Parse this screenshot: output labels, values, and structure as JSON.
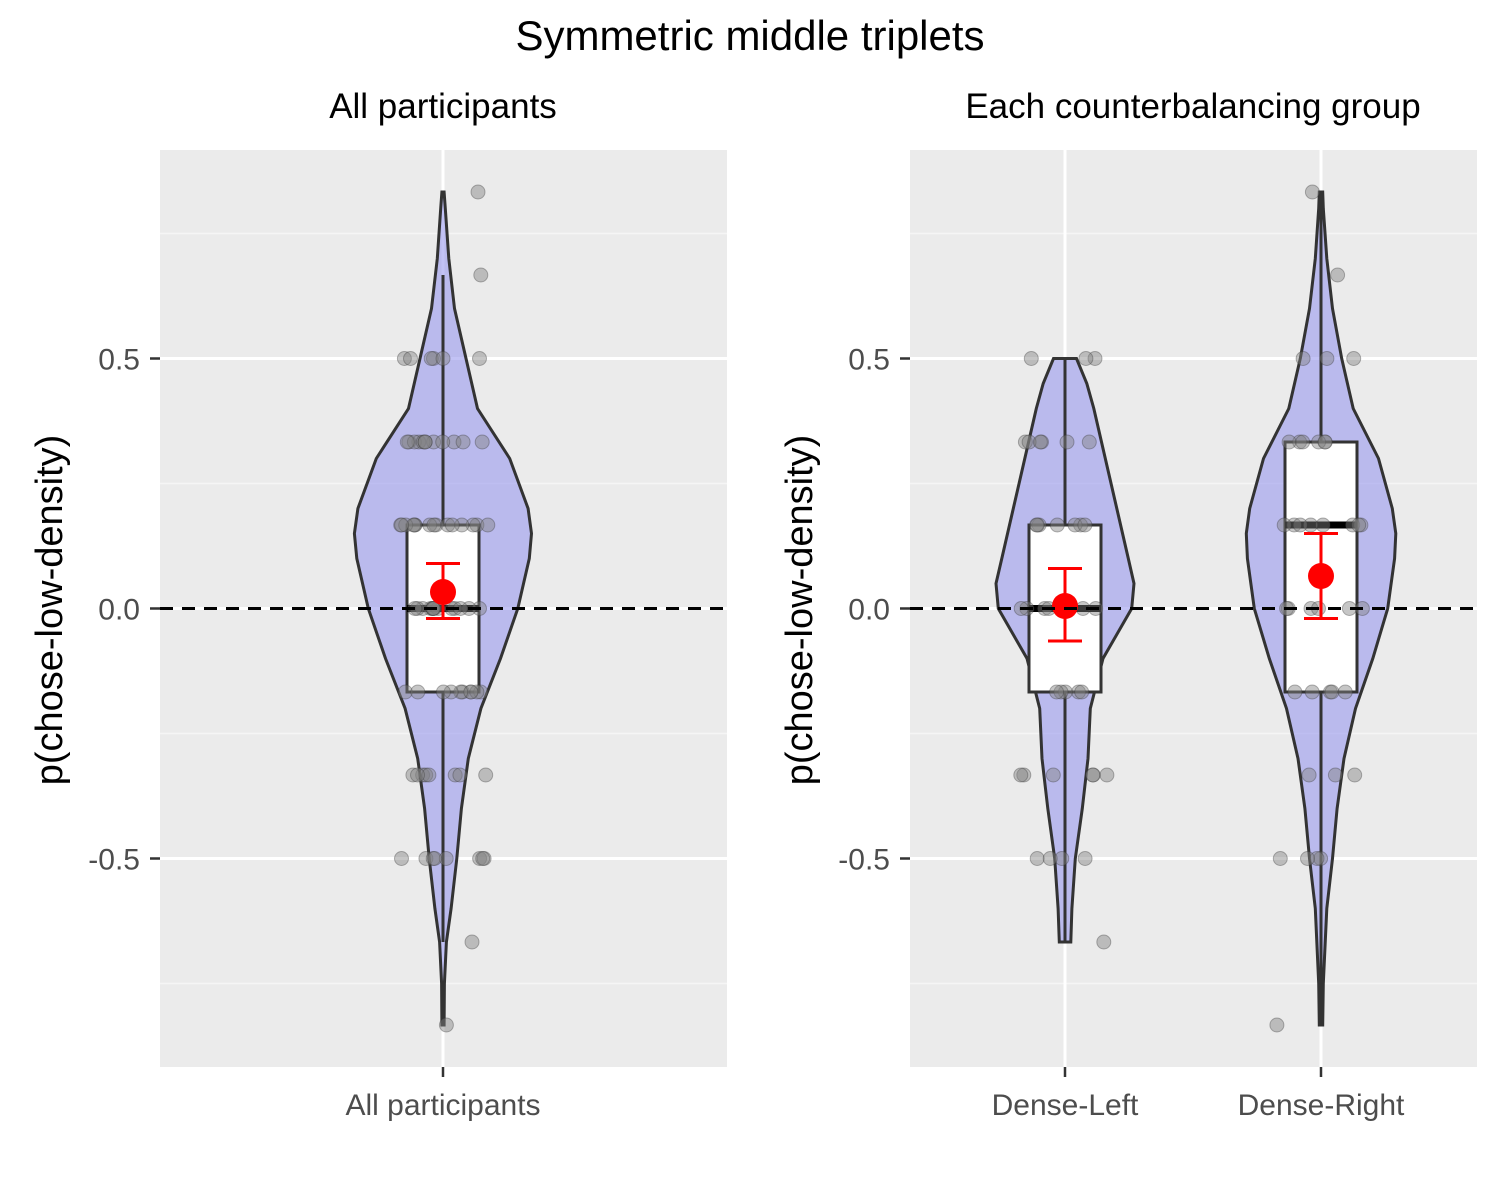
{
  "title": "Symmetric middle triplets",
  "colors": {
    "panel_background": "#EBEBEB",
    "grid_major": "#FFFFFF",
    "grid_minor": "#F5F5F5",
    "violin_fill": "#9999EE",
    "violin_stroke": "#333333",
    "box_fill": "#FFFFFF",
    "point_fill": "#808080",
    "mean_color": "#FF0000",
    "reference_line": "#000000"
  },
  "chart_data": [
    {
      "type": "violin",
      "title": "All participants",
      "xlabel": "",
      "ylabel": "p(chose-low-density)",
      "ylim": [
        -0.917,
        0.917
      ],
      "yticks": [
        -0.5,
        0.0,
        0.5
      ],
      "ytick_labels": [
        "-0.5",
        "0.0",
        "0.5"
      ],
      "reference_line": {
        "y": 0,
        "style": "dashed"
      },
      "grid": true,
      "groups": [
        {
          "name": "All participants",
          "violin_halfwidth": [
            [
              -0.833,
              0.01
            ],
            [
              -0.75,
              0.012
            ],
            [
              -0.667,
              0.03
            ],
            [
              -0.6,
              0.07
            ],
            [
              -0.5,
              0.12
            ],
            [
              -0.4,
              0.16
            ],
            [
              -0.3,
              0.22
            ],
            [
              -0.2,
              0.33
            ],
            [
              -0.1,
              0.5
            ],
            [
              0.0,
              0.65
            ],
            [
              0.1,
              0.75
            ],
            [
              0.15,
              0.77
            ],
            [
              0.2,
              0.74
            ],
            [
              0.3,
              0.58
            ],
            [
              0.4,
              0.3
            ],
            [
              0.5,
              0.2
            ],
            [
              0.6,
              0.1
            ],
            [
              0.7,
              0.05
            ],
            [
              0.8,
              0.02
            ],
            [
              0.833,
              0.01
            ]
          ],
          "box": {
            "q1": -0.167,
            "median": 0.0,
            "q3": 0.167,
            "whisker_low": -0.667,
            "whisker_high": 0.667
          },
          "mean": 0.033,
          "ci": [
            -0.02,
            0.09
          ],
          "points": [
            {
              "y": 0.833,
              "n": 1
            },
            {
              "y": 0.667,
              "n": 1
            },
            {
              "y": 0.5,
              "n": 6
            },
            {
              "y": 0.333,
              "n": 12
            },
            {
              "y": 0.167,
              "n": 15
            },
            {
              "y": 0.0,
              "n": 14
            },
            {
              "y": -0.167,
              "n": 10
            },
            {
              "y": -0.333,
              "n": 8
            },
            {
              "y": -0.5,
              "n": 8
            },
            {
              "y": -0.667,
              "n": 1
            },
            {
              "y": -0.833,
              "n": 1
            }
          ]
        }
      ]
    },
    {
      "type": "violin",
      "title": "Each counterbalancing group",
      "xlabel": "",
      "ylabel": "p(chose-low-density)",
      "ylim": [
        -0.917,
        0.917
      ],
      "yticks": [
        -0.5,
        0.0,
        0.5
      ],
      "ytick_labels": [
        "-0.5",
        "0.0",
        "0.5"
      ],
      "reference_line": {
        "y": 0,
        "style": "dashed"
      },
      "grid": true,
      "groups": [
        {
          "name": "Dense-Left",
          "violin_halfwidth": [
            [
              -0.667,
              0.05
            ],
            [
              -0.6,
              0.06
            ],
            [
              -0.5,
              0.09
            ],
            [
              -0.4,
              0.15
            ],
            [
              -0.3,
              0.2
            ],
            [
              -0.2,
              0.22
            ],
            [
              -0.1,
              0.33
            ],
            [
              0.0,
              0.58
            ],
            [
              0.05,
              0.6
            ],
            [
              0.1,
              0.55
            ],
            [
              0.2,
              0.45
            ],
            [
              0.3,
              0.35
            ],
            [
              0.4,
              0.25
            ],
            [
              0.45,
              0.19
            ],
            [
              0.5,
              0.1
            ]
          ],
          "box": {
            "q1": -0.167,
            "median": 0.0,
            "q3": 0.167,
            "whisker_low": -0.667,
            "whisker_high": 0.5
          },
          "mean": 0.005,
          "ci": [
            -0.065,
            0.08
          ],
          "points": [
            {
              "y": 0.5,
              "n": 3
            },
            {
              "y": 0.333,
              "n": 6
            },
            {
              "y": 0.167,
              "n": 7
            },
            {
              "y": 0.0,
              "n": 8
            },
            {
              "y": -0.167,
              "n": 5
            },
            {
              "y": -0.333,
              "n": 6
            },
            {
              "y": -0.5,
              "n": 4
            },
            {
              "y": -0.667,
              "n": 1
            }
          ]
        },
        {
          "name": "Dense-Right",
          "violin_halfwidth": [
            [
              -0.833,
              0.015
            ],
            [
              -0.75,
              0.02
            ],
            [
              -0.6,
              0.05
            ],
            [
              -0.5,
              0.1
            ],
            [
              -0.4,
              0.14
            ],
            [
              -0.3,
              0.2
            ],
            [
              -0.2,
              0.3
            ],
            [
              -0.1,
              0.45
            ],
            [
              0.0,
              0.58
            ],
            [
              0.1,
              0.64
            ],
            [
              0.15,
              0.65
            ],
            [
              0.2,
              0.62
            ],
            [
              0.3,
              0.5
            ],
            [
              0.4,
              0.28
            ],
            [
              0.5,
              0.18
            ],
            [
              0.6,
              0.1
            ],
            [
              0.7,
              0.05
            ],
            [
              0.8,
              0.02
            ],
            [
              0.833,
              0.015
            ]
          ],
          "box": {
            "q1": -0.167,
            "median": 0.167,
            "q3": 0.333,
            "whisker_low": -0.833,
            "whisker_high": 0.833
          },
          "mean": 0.065,
          "ci": [
            -0.02,
            0.15
          ],
          "points": [
            {
              "y": 0.833,
              "n": 1
            },
            {
              "y": 0.667,
              "n": 1
            },
            {
              "y": 0.5,
              "n": 3
            },
            {
              "y": 0.333,
              "n": 6
            },
            {
              "y": 0.167,
              "n": 8
            },
            {
              "y": 0.0,
              "n": 6
            },
            {
              "y": -0.167,
              "n": 5
            },
            {
              "y": -0.333,
              "n": 3
            },
            {
              "y": -0.5,
              "n": 4
            },
            {
              "y": -0.833,
              "n": 1
            }
          ]
        }
      ]
    }
  ]
}
